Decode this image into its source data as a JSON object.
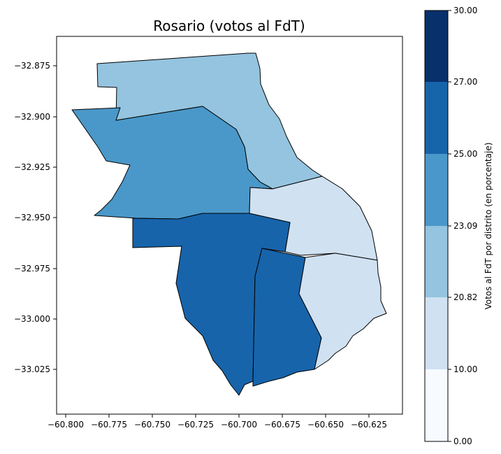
{
  "map": {
    "title": "Rosario (votos al FdT)",
    "x_ticks": [
      "−60.800",
      "−60.775",
      "−60.750",
      "−60.725",
      "−60.700",
      "−60.675",
      "−60.650",
      "−60.625"
    ],
    "y_ticks": [
      "−32.875",
      "−32.900",
      "−32.925",
      "−32.950",
      "−32.975",
      "−33.000",
      "−33.025"
    ],
    "districts": [
      {
        "class_index": 3,
        "color": "#94c4df"
      },
      {
        "class_index": 4,
        "color": "#4a98c9"
      },
      {
        "class_index": 1,
        "color": "#d0e1f2"
      },
      {
        "class_index": 5,
        "color": "#1764ab"
      },
      {
        "class_index": 5,
        "color": "#1764ab"
      },
      {
        "class_index": 1,
        "color": "#d0e1f2"
      }
    ]
  },
  "colorbar": {
    "label": "Votos al FdT por distrito (en porcentaje)",
    "bounds": [
      "0.00",
      "10.00",
      "20.82",
      "23.09",
      "25.00",
      "27.00",
      "30.00"
    ],
    "colors": [
      "#f7fbff",
      "#d0e1f2",
      "#94c4df",
      "#4a98c9",
      "#1764ab",
      "#08306b"
    ]
  }
}
